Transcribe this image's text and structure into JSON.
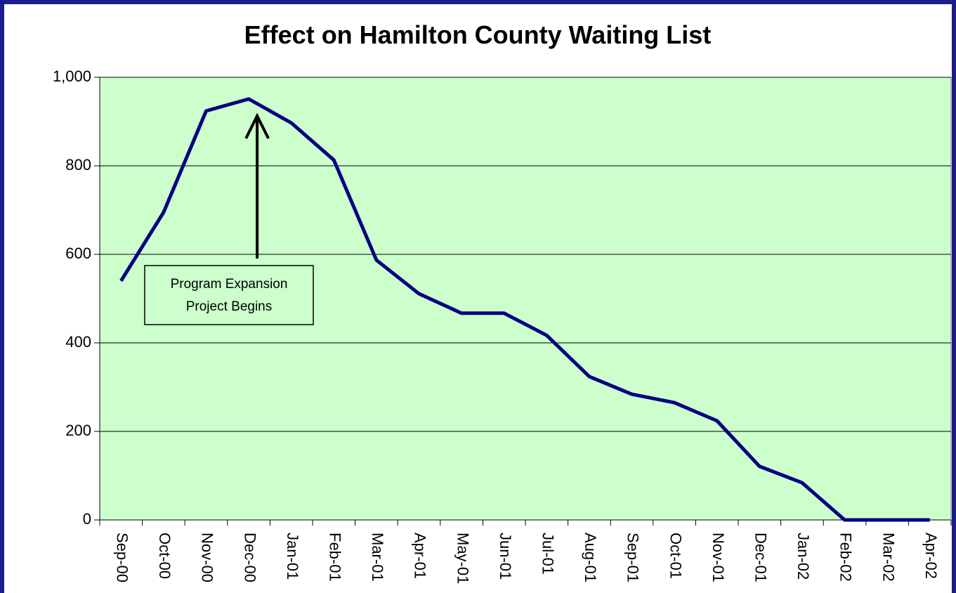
{
  "chart_data": {
    "type": "line",
    "title": "Effect on Hamilton County Waiting List",
    "categories": [
      "Sep-00",
      "Oct-00",
      "Nov-00",
      "Dec-00",
      "Jan-01",
      "Feb-01",
      "Mar-01",
      "Apr-01",
      "May-01",
      "Jun-01",
      "Jul-01",
      "Aug-01",
      "Sep-01",
      "Oct-01",
      "Nov-01",
      "Dec-01",
      "Jan-02",
      "Feb-02",
      "Mar-02",
      "Apr-02"
    ],
    "series": [
      {
        "name": "Waiting List",
        "color": "#000080",
        "values": [
          540,
          695,
          924,
          951,
          897,
          813,
          587,
          511,
          467,
          467,
          417,
          324,
          284,
          265,
          224,
          121,
          84,
          0,
          0,
          0
        ]
      }
    ],
    "ylim": [
      0,
      1000
    ],
    "yticks": [
      0,
      200,
      400,
      600,
      800,
      {
        "value": 1000,
        "label": "1,000"
      }
    ],
    "grid": true,
    "plot_color": "#ccffcc",
    "annotation": {
      "lines": [
        "Program Expansion",
        "Project Begins"
      ],
      "category": 3
    }
  }
}
